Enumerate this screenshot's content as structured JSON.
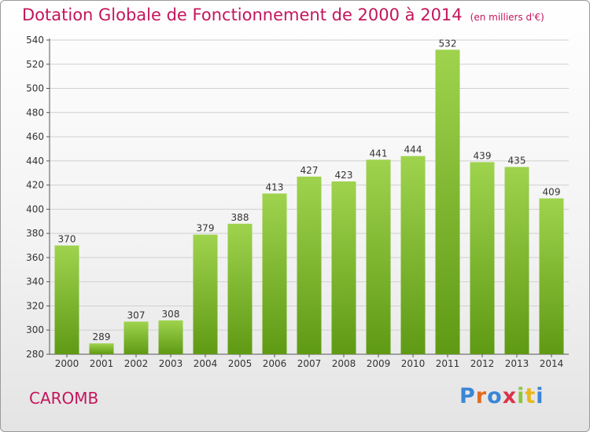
{
  "header": {
    "title": "Dotation Globale de Fonctionnement de 2000 à 2014",
    "subtitle": "(en milliers d'€)"
  },
  "footer": {
    "commune": "CAROMB",
    "logo": "Proxiti"
  },
  "colors": {
    "accent": "#c4155c",
    "bar_top": "#9fd34e",
    "bar_bottom": "#5f9a14",
    "grid": "#d0d0d0"
  },
  "chart_data": {
    "type": "bar",
    "title": "Dotation Globale de Fonctionnement de 2000 à 2014",
    "subtitle": "(en milliers d'€)",
    "categories": [
      "2000",
      "2001",
      "2002",
      "2003",
      "2004",
      "2005",
      "2006",
      "2007",
      "2008",
      "2009",
      "2010",
      "2011",
      "2012",
      "2013",
      "2014"
    ],
    "values": [
      370,
      289,
      307,
      308,
      379,
      388,
      413,
      427,
      423,
      441,
      444,
      532,
      439,
      435,
      409
    ],
    "ylim": [
      280,
      540
    ],
    "yticks": [
      280,
      300,
      320,
      340,
      360,
      380,
      400,
      420,
      440,
      460,
      480,
      500,
      520,
      540
    ],
    "grid": true,
    "xlabel": "",
    "ylabel": ""
  }
}
